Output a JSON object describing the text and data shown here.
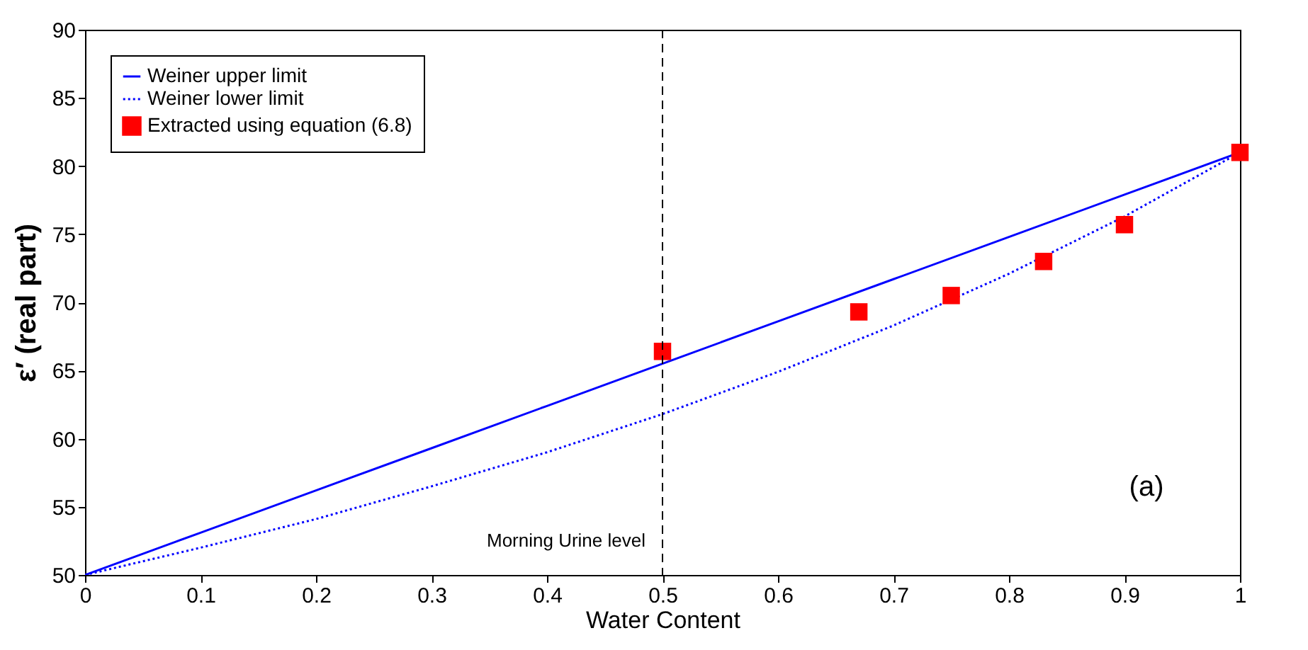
{
  "chart_data": {
    "type": "line",
    "xlabel": "Water Content",
    "ylabel": "ε′ (real part)",
    "xlim": [
      0,
      1
    ],
    "ylim": [
      50,
      90
    ],
    "xticks": [
      0,
      0.1,
      0.2,
      0.3,
      0.4,
      0.5,
      0.6,
      0.7,
      0.8,
      0.9,
      1
    ],
    "yticks": [
      50,
      55,
      60,
      65,
      70,
      75,
      80,
      85,
      90
    ],
    "grid": false,
    "legend": "top left",
    "series": [
      {
        "name": "Weiner upper limit",
        "color": "#0000ff",
        "line_style": "solid",
        "x": [
          0,
          0.1,
          0.2,
          0.3,
          0.4,
          0.5,
          0.6,
          0.7,
          0.8,
          0.9,
          1
        ],
        "values": [
          50,
          53.1,
          56.2,
          59.3,
          62.4,
          65.5,
          68.6,
          71.7,
          74.8,
          77.9,
          81
        ]
      },
      {
        "name": "Weiner lower limit",
        "color": "#0000ff",
        "line_style": "dotted",
        "x": [
          0,
          0.1,
          0.2,
          0.3,
          0.4,
          0.5,
          0.6,
          0.7,
          0.8,
          0.9,
          1
        ],
        "values": [
          50,
          52,
          54.1,
          56.5,
          59,
          61.8,
          64.9,
          68.3,
          72.1,
          76.3,
          81
        ]
      },
      {
        "name": "Extracted using equation (6.8)",
        "type": "scatter",
        "color": "#ff0000",
        "marker": "square",
        "x": [
          0.5,
          0.67,
          0.75,
          0.83,
          0.9,
          1
        ],
        "values": [
          66.4,
          69.3,
          70.5,
          73,
          75.7,
          81
        ]
      }
    ],
    "ref_lines": [
      {
        "axis": "x",
        "value": 0.5,
        "color": "#000000",
        "line_style": "dashed"
      }
    ],
    "annotations": [
      {
        "text": "Morning Urine level",
        "x": 0.5,
        "y": 52.5
      },
      "(a)"
    ]
  }
}
